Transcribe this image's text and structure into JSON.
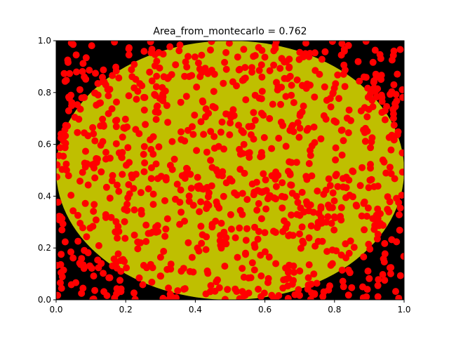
{
  "chart_data": {
    "type": "scatter",
    "title": "Area_from_montecarlo = 0.762",
    "xlabel": "",
    "ylabel": "",
    "xlim": [
      0.0,
      1.0
    ],
    "ylim": [
      0.0,
      1.0
    ],
    "x_ticks": [
      "0.0",
      "0.2",
      "0.4",
      "0.6",
      "0.8",
      "1.0"
    ],
    "y_ticks": [
      "0.0",
      "0.2",
      "0.4",
      "0.6",
      "0.8",
      "1.0"
    ],
    "grid": false,
    "legend": "none",
    "background_color": "#000000",
    "region": {
      "shape": "ellipse",
      "center": [
        0.5,
        0.5
      ],
      "radius": [
        0.5,
        0.5
      ],
      "color": "#bfbf00"
    },
    "points": {
      "count": 1000,
      "color": "#ff0000",
      "distribution": "uniform random on [0,1]x[0,1]"
    }
  }
}
